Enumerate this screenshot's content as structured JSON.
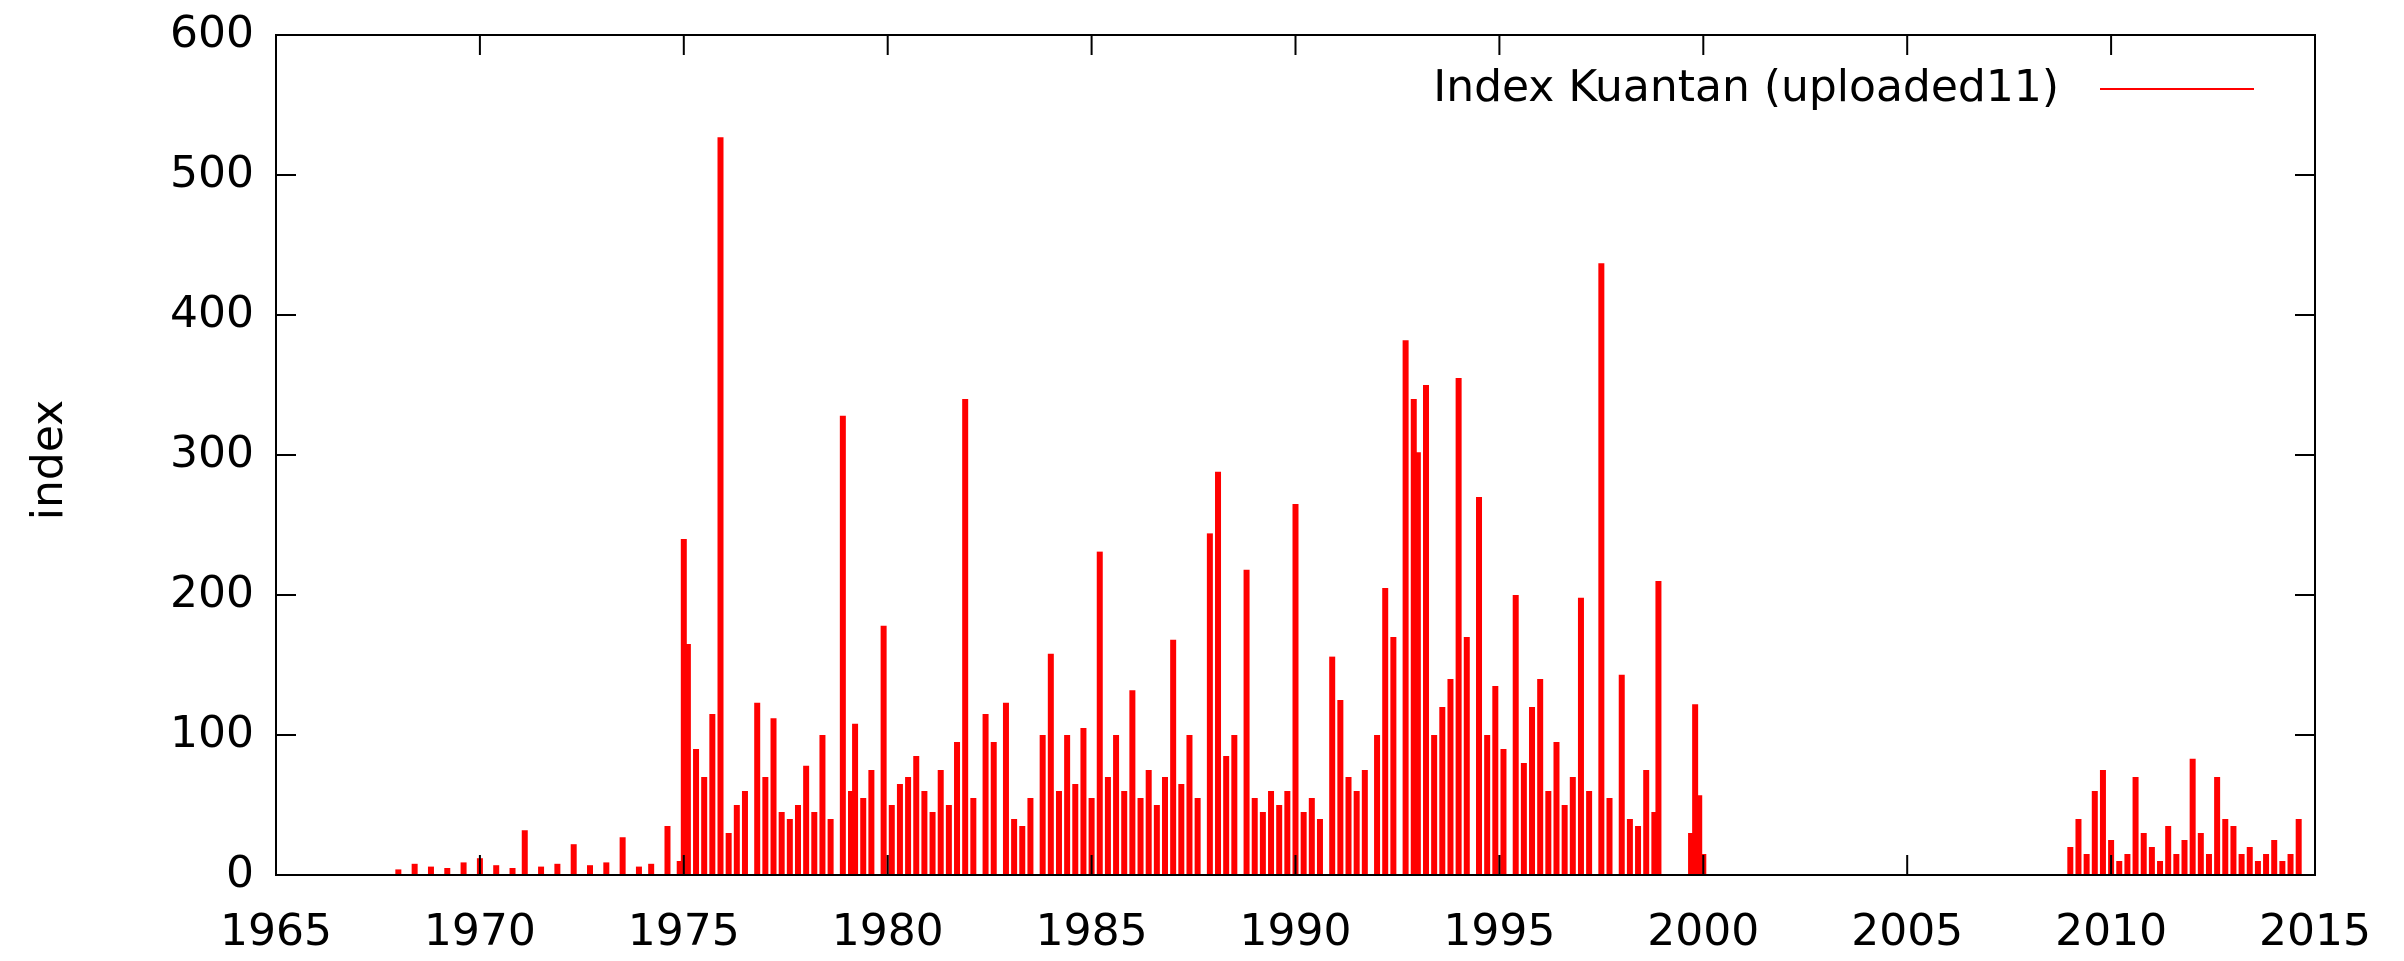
{
  "chart_data": {
    "type": "impulse",
    "ylabel": "index",
    "series": [
      {
        "name": "Index Kuantan (uploaded11)",
        "color": "#ff0000",
        "x": [
          1968.0,
          1968.4,
          1968.8,
          1969.2,
          1969.6,
          1970.0,
          1970.4,
          1970.8,
          1971.1,
          1971.5,
          1971.9,
          1972.3,
          1972.7,
          1973.1,
          1973.5,
          1973.9,
          1974.2,
          1974.6,
          1974.9,
          1975.0,
          1975.1,
          1975.3,
          1975.5,
          1975.7,
          1975.9,
          1976.1,
          1976.3,
          1976.5,
          1976.8,
          1977.0,
          1977.2,
          1977.4,
          1977.6,
          1977.8,
          1978.0,
          1978.2,
          1978.4,
          1978.6,
          1978.9,
          1979.1,
          1979.2,
          1979.4,
          1979.6,
          1979.9,
          1980.1,
          1980.3,
          1980.5,
          1980.7,
          1980.9,
          1981.1,
          1981.3,
          1981.5,
          1981.7,
          1981.9,
          1982.1,
          1982.4,
          1982.6,
          1982.9,
          1983.1,
          1983.3,
          1983.5,
          1983.8,
          1984.0,
          1984.2,
          1984.4,
          1984.6,
          1984.8,
          1985.0,
          1985.2,
          1985.4,
          1985.6,
          1985.8,
          1986.0,
          1986.2,
          1986.4,
          1986.6,
          1986.8,
          1987.0,
          1987.2,
          1987.4,
          1987.6,
          1987.9,
          1988.1,
          1988.3,
          1988.5,
          1988.8,
          1989.0,
          1989.2,
          1989.4,
          1989.6,
          1989.8,
          1990.0,
          1990.2,
          1990.4,
          1990.6,
          1990.9,
          1991.1,
          1991.3,
          1991.5,
          1991.7,
          1992.0,
          1992.2,
          1992.4,
          1992.7,
          1992.9,
          1993.0,
          1993.2,
          1993.4,
          1993.6,
          1993.8,
          1994.0,
          1994.2,
          1994.5,
          1994.7,
          1994.9,
          1995.1,
          1995.4,
          1995.6,
          1995.8,
          1996.0,
          1996.2,
          1996.4,
          1996.6,
          1996.8,
          1997.0,
          1997.2,
          1997.5,
          1997.7,
          1998.0,
          1998.2,
          1998.4,
          1998.6,
          1998.8,
          1998.9,
          1999.7,
          1999.8,
          1999.9,
          2000.0,
          2009.0,
          2009.2,
          2009.4,
          2009.6,
          2009.8,
          2010.0,
          2010.2,
          2010.4,
          2010.6,
          2010.8,
          2011.0,
          2011.2,
          2011.4,
          2011.6,
          2011.8,
          2012.0,
          2012.2,
          2012.4,
          2012.6,
          2012.8,
          2013.0,
          2013.2,
          2013.4,
          2013.6,
          2013.8,
          2014.0,
          2014.2,
          2014.4,
          2014.6
        ],
        "values": [
          4,
          8,
          6,
          5,
          9,
          12,
          7,
          5,
          32,
          6,
          8,
          22,
          7,
          9,
          27,
          6,
          8,
          35,
          10,
          240,
          165,
          90,
          70,
          115,
          527,
          30,
          50,
          60,
          123,
          70,
          112,
          45,
          40,
          50,
          78,
          45,
          100,
          40,
          328,
          60,
          108,
          55,
          75,
          178,
          50,
          65,
          70,
          85,
          60,
          45,
          75,
          50,
          95,
          340,
          55,
          115,
          95,
          123,
          40,
          35,
          55,
          100,
          158,
          60,
          100,
          65,
          105,
          55,
          231,
          70,
          100,
          60,
          132,
          55,
          75,
          50,
          70,
          168,
          65,
          100,
          55,
          244,
          288,
          85,
          100,
          218,
          55,
          45,
          60,
          50,
          60,
          265,
          45,
          55,
          40,
          156,
          125,
          70,
          60,
          75,
          100,
          205,
          170,
          382,
          340,
          302,
          350,
          100,
          120,
          140,
          355,
          170,
          270,
          100,
          135,
          90,
          200,
          80,
          120,
          140,
          60,
          95,
          50,
          70,
          198,
          60,
          437,
          55,
          143,
          40,
          35,
          75,
          45,
          210,
          30,
          122,
          57,
          15,
          20,
          40,
          15,
          60,
          75,
          25,
          10,
          15,
          70,
          30,
          20,
          10,
          35,
          15,
          25,
          83,
          30,
          15,
          70,
          40,
          35,
          15,
          20,
          10,
          15,
          25,
          10,
          15,
          40
        ]
      }
    ],
    "xlim": [
      1965,
      2015
    ],
    "xticks": [
      1965,
      1970,
      1975,
      1980,
      1985,
      1990,
      1995,
      2000,
      2005,
      2010,
      2015
    ],
    "ylim": [
      0,
      600
    ],
    "yticks": [
      0,
      100,
      200,
      300,
      400,
      500,
      600
    ],
    "legend": "top-right",
    "grid": false
  }
}
